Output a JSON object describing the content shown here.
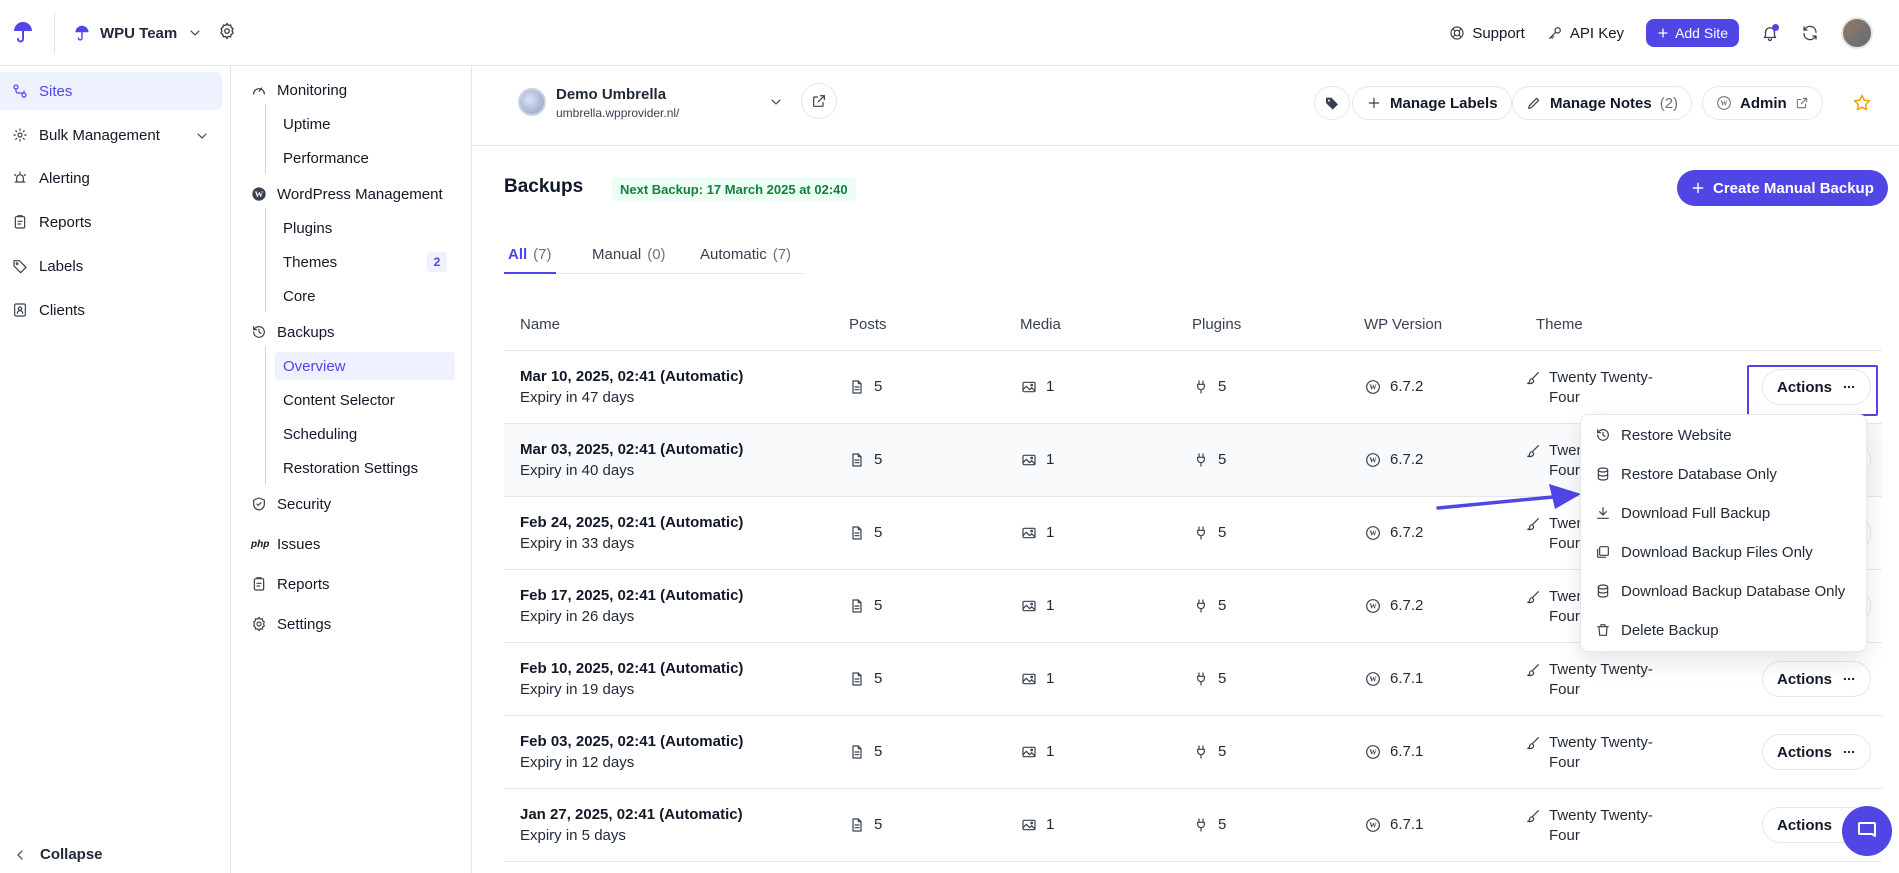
{
  "header": {
    "team_name": "WPU Team",
    "support": "Support",
    "api_key": "API Key",
    "add_site": "Add Site"
  },
  "sidebar": {
    "items": [
      {
        "label": "Sites",
        "icon": "sites-icon",
        "active": true
      },
      {
        "label": "Bulk Management",
        "icon": "bulk-icon"
      },
      {
        "label": "Alerting",
        "icon": "alert-icon"
      },
      {
        "label": "Reports",
        "icon": "reports-icon"
      },
      {
        "label": "Labels",
        "icon": "tag-icon"
      },
      {
        "label": "Clients",
        "icon": "clients-icon"
      }
    ],
    "collapse": "Collapse"
  },
  "subnav": {
    "monitoring": "Monitoring",
    "uptime": "Uptime",
    "performance": "Performance",
    "wp_management": "WordPress Management",
    "plugins": "Plugins",
    "themes": "Themes",
    "themes_badge": "2",
    "core": "Core",
    "backups": "Backups",
    "overview": "Overview",
    "content_selector": "Content Selector",
    "scheduling": "Scheduling",
    "restoration_settings": "Restoration Settings",
    "security": "Security",
    "issues": "Issues",
    "php": "php",
    "reports": "Reports",
    "settings": "Settings"
  },
  "site": {
    "name": "Demo Umbrella",
    "url": "umbrella.wpprovider.nl/",
    "manage_labels": "Manage Labels",
    "manage_notes": "Manage Notes",
    "notes_count": "(2)",
    "admin": "Admin"
  },
  "backups": {
    "title": "Backups",
    "next_backup": "Next Backup: 17 March 2025 at 02:40",
    "create_button": "Create Manual Backup",
    "tabs": [
      {
        "label": "All",
        "count": "(7)"
      },
      {
        "label": "Manual",
        "count": "(0)"
      },
      {
        "label": "Automatic",
        "count": "(7)"
      }
    ],
    "columns": {
      "name": "Name",
      "posts": "Posts",
      "media": "Media",
      "plugins": "Plugins",
      "wp_version": "WP Version",
      "theme": "Theme"
    },
    "actions_label": "Actions",
    "rows": [
      {
        "name": "Mar 10, 2025, 02:41 (Automatic)",
        "expiry": "Expiry in 47 days",
        "posts": "5",
        "media": "1",
        "plugins": "5",
        "wp": "6.7.2",
        "theme": "Twenty Twenty-Four"
      },
      {
        "name": "Mar 03, 2025, 02:41 (Automatic)",
        "expiry": "Expiry in 40 days",
        "posts": "5",
        "media": "1",
        "plugins": "5",
        "wp": "6.7.2",
        "theme": "Twenty Twenty-Four"
      },
      {
        "name": "Feb 24, 2025, 02:41 (Automatic)",
        "expiry": "Expiry in 33 days",
        "posts": "5",
        "media": "1",
        "plugins": "5",
        "wp": "6.7.2",
        "theme": "Twenty Twenty-Four"
      },
      {
        "name": "Feb 17, 2025, 02:41 (Automatic)",
        "expiry": "Expiry in 26 days",
        "posts": "5",
        "media": "1",
        "plugins": "5",
        "wp": "6.7.2",
        "theme": "Twenty Twenty-Four"
      },
      {
        "name": "Feb 10, 2025, 02:41 (Automatic)",
        "expiry": "Expiry in 19 days",
        "posts": "5",
        "media": "1",
        "plugins": "5",
        "wp": "6.7.1",
        "theme": "Twenty Twenty-Four"
      },
      {
        "name": "Feb 03, 2025, 02:41 (Automatic)",
        "expiry": "Expiry in 12 days",
        "posts": "5",
        "media": "1",
        "plugins": "5",
        "wp": "6.7.1",
        "theme": "Twenty Twenty-Four"
      },
      {
        "name": "Jan 27, 2025, 02:41 (Automatic)",
        "expiry": "Expiry in 5 days",
        "posts": "5",
        "media": "1",
        "plugins": "5",
        "wp": "6.7.1",
        "theme": "Twenty Twenty-Four"
      }
    ]
  },
  "actions_menu": {
    "items": [
      {
        "label": "Restore Website",
        "icon": "history-icon"
      },
      {
        "label": "Restore Database Only",
        "icon": "database-icon"
      },
      {
        "label": "Download Full Backup",
        "icon": "download-icon"
      },
      {
        "label": "Download Backup Files Only",
        "icon": "files-icon"
      },
      {
        "label": "Download Backup Database Only",
        "icon": "database-icon"
      },
      {
        "label": "Delete Backup",
        "icon": "trash-icon"
      }
    ]
  },
  "colors": {
    "accent": "#4f46e5",
    "success_bg": "#ecfdf5",
    "success_text": "#15803d",
    "star": "#f59e0b"
  }
}
